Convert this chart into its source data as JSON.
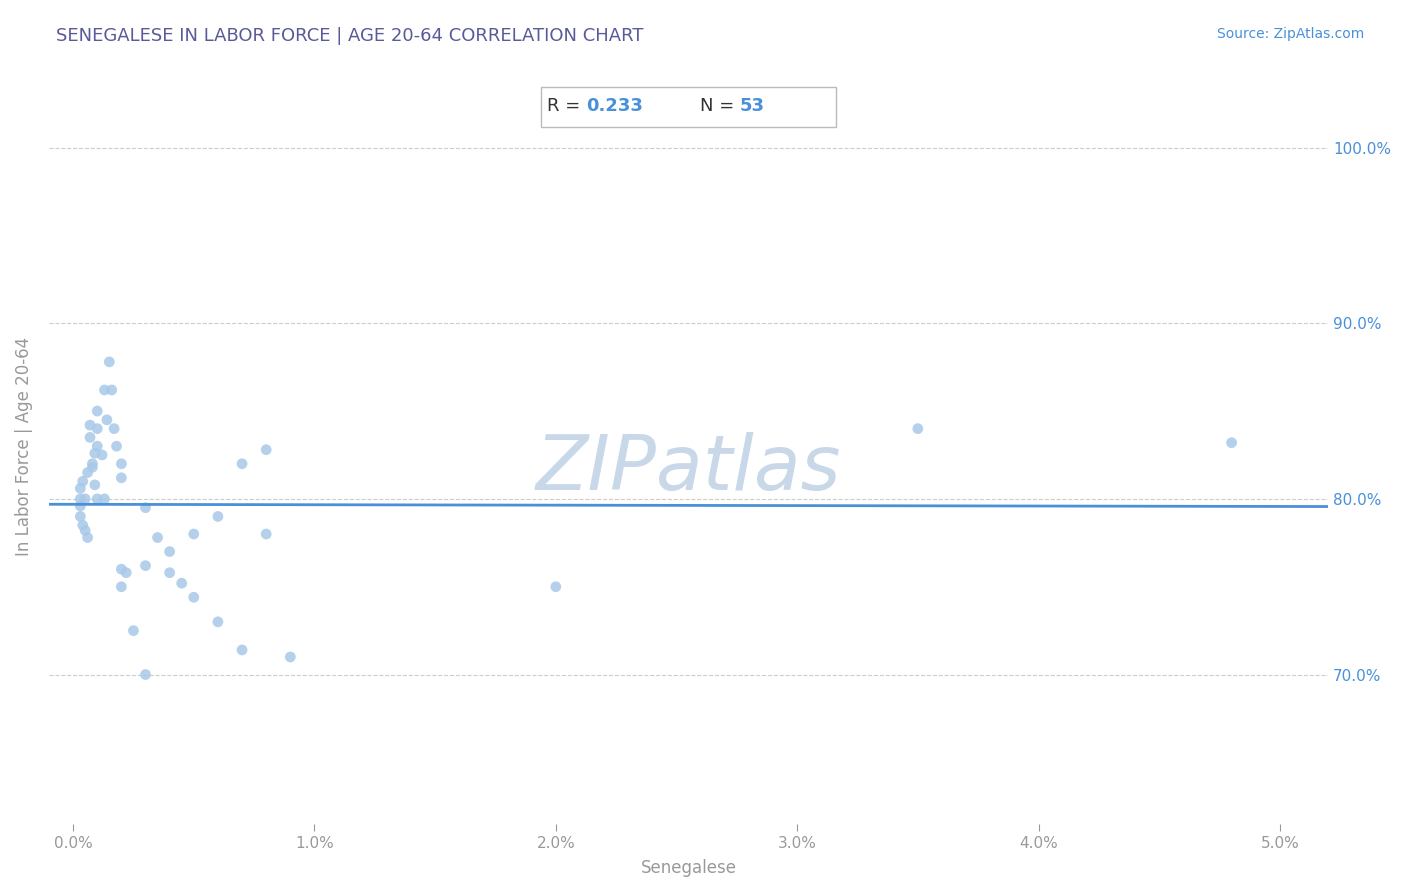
{
  "title": "SENEGALESE IN LABOR FORCE | AGE 20-64 CORRELATION CHART",
  "source": "Source: ZipAtlas.com",
  "xlabel": "Senegalese",
  "ylabel": "In Labor Force | Age 20-64",
  "R": 0.233,
  "N": 53,
  "xlim": [
    -0.001,
    0.052
  ],
  "ylim": [
    0.615,
    1.045
  ],
  "xticks": [
    0.0,
    0.01,
    0.02,
    0.03,
    0.04,
    0.05
  ],
  "xticklabels": [
    "0.0%",
    "1.0%",
    "2.0%",
    "3.0%",
    "4.0%",
    "5.0%"
  ],
  "yticks": [
    0.7,
    0.8,
    0.9,
    1.0
  ],
  "yticklabels": [
    "70.0%",
    "80.0%",
    "90.0%",
    "100.0%"
  ],
  "scatter_color": "#a8c8e8",
  "scatter_alpha": 0.85,
  "scatter_size": 60,
  "line_color": "#4a90d9",
  "line_width": 2.0,
  "title_color": "#5a5a9a",
  "axis_color": "#999999",
  "grid_color": "#cccccc",
  "watermark": "ZIPatlas",
  "watermark_color": "#c8d8e8",
  "annotation_color": "#333333",
  "annotation_blue": "#4a90d9",
  "scatter_x": [
    0.0003,
    0.0003,
    0.0003,
    0.0003,
    0.0004,
    0.0004,
    0.0005,
    0.0005,
    0.0006,
    0.0006,
    0.0007,
    0.0007,
    0.0008,
    0.0008,
    0.0009,
    0.0009,
    0.001,
    0.001,
    0.001,
    0.001,
    0.0012,
    0.0013,
    0.0013,
    0.0014,
    0.0015,
    0.0016,
    0.0017,
    0.0018,
    0.002,
    0.002,
    0.002,
    0.002,
    0.0022,
    0.0025,
    0.003,
    0.003,
    0.003,
    0.0035,
    0.004,
    0.004,
    0.0045,
    0.005,
    0.005,
    0.006,
    0.006,
    0.007,
    0.007,
    0.008,
    0.008,
    0.009,
    0.02,
    0.035,
    0.048
  ],
  "scatter_y": [
    0.806,
    0.8,
    0.796,
    0.79,
    0.81,
    0.785,
    0.782,
    0.8,
    0.815,
    0.778,
    0.835,
    0.842,
    0.818,
    0.82,
    0.808,
    0.826,
    0.85,
    0.84,
    0.83,
    0.8,
    0.825,
    0.8,
    0.862,
    0.845,
    0.878,
    0.862,
    0.84,
    0.83,
    0.76,
    0.75,
    0.82,
    0.812,
    0.758,
    0.725,
    0.7,
    0.762,
    0.795,
    0.778,
    0.77,
    0.758,
    0.752,
    0.744,
    0.78,
    0.79,
    0.73,
    0.714,
    0.82,
    0.828,
    0.78,
    0.71,
    0.75,
    0.84,
    0.832
  ]
}
